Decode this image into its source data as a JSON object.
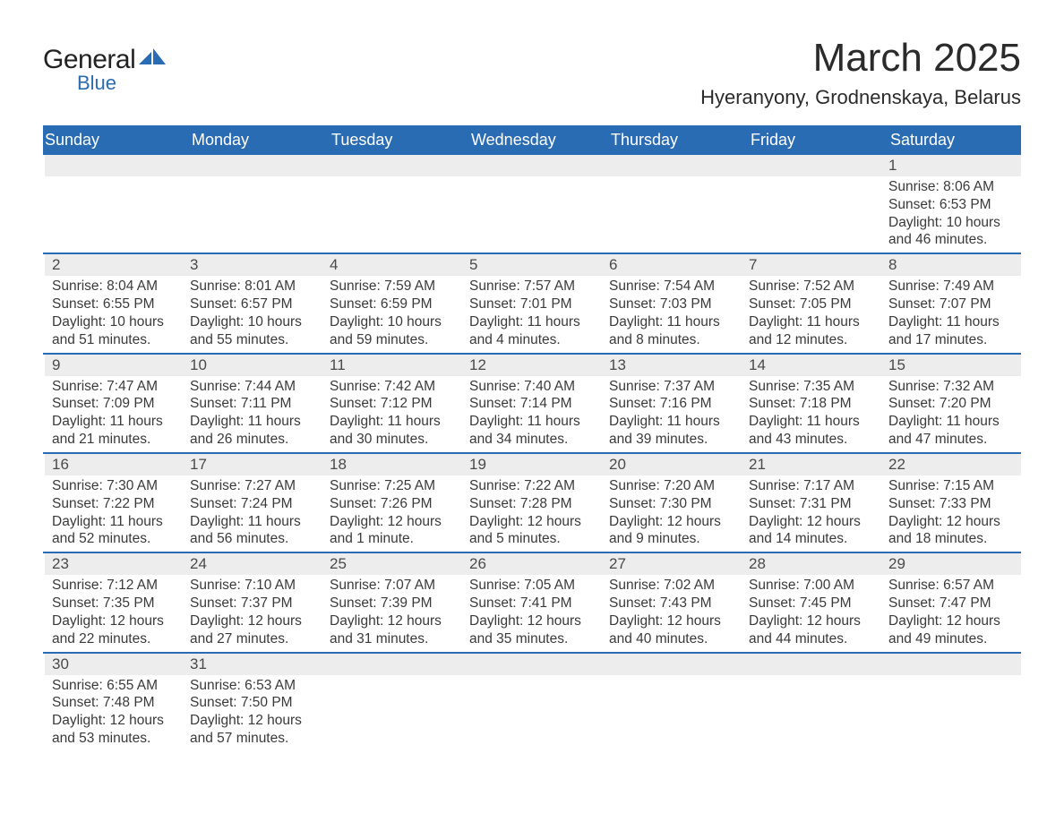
{
  "logo": {
    "word1": "General",
    "word2": "Blue"
  },
  "colors": {
    "header_bg": "#2a6cb4",
    "header_text": "#ffffff",
    "daynum_bg": "#ededed",
    "text": "#3a3a3a",
    "row_border": "#2a6cb4",
    "page_bg": "#ffffff",
    "logo_accent": "#2a6cb4"
  },
  "typography": {
    "font_family": "Arial, Helvetica, sans-serif",
    "month_title_fontsize": 44,
    "location_fontsize": 22,
    "weekday_fontsize": 18,
    "daynum_fontsize": 17,
    "body_fontsize": 15.5
  },
  "title": {
    "month": "March 2025",
    "location": "Hyeranyony, Grodnenskaya, Belarus"
  },
  "weekdays": [
    "Sunday",
    "Monday",
    "Tuesday",
    "Wednesday",
    "Thursday",
    "Friday",
    "Saturday"
  ],
  "weeks": [
    [
      {
        "day": "",
        "sunrise": "",
        "sunset": "",
        "daylight": ""
      },
      {
        "day": "",
        "sunrise": "",
        "sunset": "",
        "daylight": ""
      },
      {
        "day": "",
        "sunrise": "",
        "sunset": "",
        "daylight": ""
      },
      {
        "day": "",
        "sunrise": "",
        "sunset": "",
        "daylight": ""
      },
      {
        "day": "",
        "sunrise": "",
        "sunset": "",
        "daylight": ""
      },
      {
        "day": "",
        "sunrise": "",
        "sunset": "",
        "daylight": ""
      },
      {
        "day": "1",
        "sunrise": "Sunrise: 8:06 AM",
        "sunset": "Sunset: 6:53 PM",
        "daylight": "Daylight: 10 hours and 46 minutes."
      }
    ],
    [
      {
        "day": "2",
        "sunrise": "Sunrise: 8:04 AM",
        "sunset": "Sunset: 6:55 PM",
        "daylight": "Daylight: 10 hours and 51 minutes."
      },
      {
        "day": "3",
        "sunrise": "Sunrise: 8:01 AM",
        "sunset": "Sunset: 6:57 PM",
        "daylight": "Daylight: 10 hours and 55 minutes."
      },
      {
        "day": "4",
        "sunrise": "Sunrise: 7:59 AM",
        "sunset": "Sunset: 6:59 PM",
        "daylight": "Daylight: 10 hours and 59 minutes."
      },
      {
        "day": "5",
        "sunrise": "Sunrise: 7:57 AM",
        "sunset": "Sunset: 7:01 PM",
        "daylight": "Daylight: 11 hours and 4 minutes."
      },
      {
        "day": "6",
        "sunrise": "Sunrise: 7:54 AM",
        "sunset": "Sunset: 7:03 PM",
        "daylight": "Daylight: 11 hours and 8 minutes."
      },
      {
        "day": "7",
        "sunrise": "Sunrise: 7:52 AM",
        "sunset": "Sunset: 7:05 PM",
        "daylight": "Daylight: 11 hours and 12 minutes."
      },
      {
        "day": "8",
        "sunrise": "Sunrise: 7:49 AM",
        "sunset": "Sunset: 7:07 PM",
        "daylight": "Daylight: 11 hours and 17 minutes."
      }
    ],
    [
      {
        "day": "9",
        "sunrise": "Sunrise: 7:47 AM",
        "sunset": "Sunset: 7:09 PM",
        "daylight": "Daylight: 11 hours and 21 minutes."
      },
      {
        "day": "10",
        "sunrise": "Sunrise: 7:44 AM",
        "sunset": "Sunset: 7:11 PM",
        "daylight": "Daylight: 11 hours and 26 minutes."
      },
      {
        "day": "11",
        "sunrise": "Sunrise: 7:42 AM",
        "sunset": "Sunset: 7:12 PM",
        "daylight": "Daylight: 11 hours and 30 minutes."
      },
      {
        "day": "12",
        "sunrise": "Sunrise: 7:40 AM",
        "sunset": "Sunset: 7:14 PM",
        "daylight": "Daylight: 11 hours and 34 minutes."
      },
      {
        "day": "13",
        "sunrise": "Sunrise: 7:37 AM",
        "sunset": "Sunset: 7:16 PM",
        "daylight": "Daylight: 11 hours and 39 minutes."
      },
      {
        "day": "14",
        "sunrise": "Sunrise: 7:35 AM",
        "sunset": "Sunset: 7:18 PM",
        "daylight": "Daylight: 11 hours and 43 minutes."
      },
      {
        "day": "15",
        "sunrise": "Sunrise: 7:32 AM",
        "sunset": "Sunset: 7:20 PM",
        "daylight": "Daylight: 11 hours and 47 minutes."
      }
    ],
    [
      {
        "day": "16",
        "sunrise": "Sunrise: 7:30 AM",
        "sunset": "Sunset: 7:22 PM",
        "daylight": "Daylight: 11 hours and 52 minutes."
      },
      {
        "day": "17",
        "sunrise": "Sunrise: 7:27 AM",
        "sunset": "Sunset: 7:24 PM",
        "daylight": "Daylight: 11 hours and 56 minutes."
      },
      {
        "day": "18",
        "sunrise": "Sunrise: 7:25 AM",
        "sunset": "Sunset: 7:26 PM",
        "daylight": "Daylight: 12 hours and 1 minute."
      },
      {
        "day": "19",
        "sunrise": "Sunrise: 7:22 AM",
        "sunset": "Sunset: 7:28 PM",
        "daylight": "Daylight: 12 hours and 5 minutes."
      },
      {
        "day": "20",
        "sunrise": "Sunrise: 7:20 AM",
        "sunset": "Sunset: 7:30 PM",
        "daylight": "Daylight: 12 hours and 9 minutes."
      },
      {
        "day": "21",
        "sunrise": "Sunrise: 7:17 AM",
        "sunset": "Sunset: 7:31 PM",
        "daylight": "Daylight: 12 hours and 14 minutes."
      },
      {
        "day": "22",
        "sunrise": "Sunrise: 7:15 AM",
        "sunset": "Sunset: 7:33 PM",
        "daylight": "Daylight: 12 hours and 18 minutes."
      }
    ],
    [
      {
        "day": "23",
        "sunrise": "Sunrise: 7:12 AM",
        "sunset": "Sunset: 7:35 PM",
        "daylight": "Daylight: 12 hours and 22 minutes."
      },
      {
        "day": "24",
        "sunrise": "Sunrise: 7:10 AM",
        "sunset": "Sunset: 7:37 PM",
        "daylight": "Daylight: 12 hours and 27 minutes."
      },
      {
        "day": "25",
        "sunrise": "Sunrise: 7:07 AM",
        "sunset": "Sunset: 7:39 PM",
        "daylight": "Daylight: 12 hours and 31 minutes."
      },
      {
        "day": "26",
        "sunrise": "Sunrise: 7:05 AM",
        "sunset": "Sunset: 7:41 PM",
        "daylight": "Daylight: 12 hours and 35 minutes."
      },
      {
        "day": "27",
        "sunrise": "Sunrise: 7:02 AM",
        "sunset": "Sunset: 7:43 PM",
        "daylight": "Daylight: 12 hours and 40 minutes."
      },
      {
        "day": "28",
        "sunrise": "Sunrise: 7:00 AM",
        "sunset": "Sunset: 7:45 PM",
        "daylight": "Daylight: 12 hours and 44 minutes."
      },
      {
        "day": "29",
        "sunrise": "Sunrise: 6:57 AM",
        "sunset": "Sunset: 7:47 PM",
        "daylight": "Daylight: 12 hours and 49 minutes."
      }
    ],
    [
      {
        "day": "30",
        "sunrise": "Sunrise: 6:55 AM",
        "sunset": "Sunset: 7:48 PM",
        "daylight": "Daylight: 12 hours and 53 minutes."
      },
      {
        "day": "31",
        "sunrise": "Sunrise: 6:53 AM",
        "sunset": "Sunset: 7:50 PM",
        "daylight": "Daylight: 12 hours and 57 minutes."
      },
      {
        "day": "",
        "sunrise": "",
        "sunset": "",
        "daylight": ""
      },
      {
        "day": "",
        "sunrise": "",
        "sunset": "",
        "daylight": ""
      },
      {
        "day": "",
        "sunrise": "",
        "sunset": "",
        "daylight": ""
      },
      {
        "day": "",
        "sunrise": "",
        "sunset": "",
        "daylight": ""
      },
      {
        "day": "",
        "sunrise": "",
        "sunset": "",
        "daylight": ""
      }
    ]
  ]
}
